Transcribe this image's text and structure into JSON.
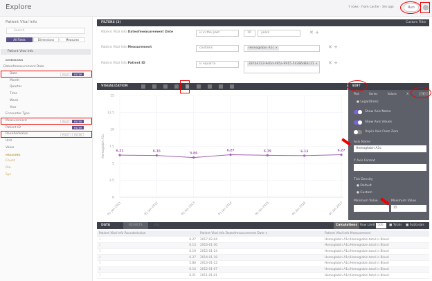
{
  "header": {
    "title": "Explore",
    "status": "7 rows · from cache · 3m ago",
    "run_label": "Run"
  },
  "sidebar": {
    "model": "Patient Vital Info",
    "search_placeholder": "Search",
    "tabs": [
      "All Fields",
      "Dimensions",
      "Measures"
    ],
    "view": "Patient Vital Info",
    "dimensions_label": "DIMENSIONS",
    "group": "Dateofmeasurement Date",
    "fields": [
      "Date",
      "Month",
      "Quarter",
      "Time",
      "Week",
      "Year",
      "Encounter Type",
      "Measurement",
      "Patient ID",
      "Roundedvalue",
      "Unit",
      "Value"
    ],
    "measures_label": "MEASURES",
    "measures": [
      "Count",
      "Dia",
      "Sys"
    ],
    "pivot": "PIVOT",
    "filter": "FILTER"
  },
  "filters": {
    "title": "FILTERS (3)",
    "custom_filter": "Custom Filter",
    "prefix": "Patient Vital Info",
    "rows": [
      {
        "field": "Dateofmeasurement Date",
        "op": "is in the past",
        "value": "10",
        "unit": "years"
      },
      {
        "field": "Measurement",
        "op": "contains",
        "value": "Hemoglobin A1c ×"
      },
      {
        "field": "Patient ID",
        "op": "is equal to",
        "value": "287b4723-9d0d-495a-9915-54386d8dc31 ×"
      }
    ]
  },
  "visualization": {
    "title": "VISUALIZATION",
    "edit": "EDIT",
    "edit_tabs": [
      "Plot",
      "Series",
      "Values",
      "X",
      "Y"
    ],
    "logarithmic": "Logarithmic",
    "show_axis_name": "Show Axis Name",
    "show_axis_values": "Show Axis Values",
    "unpin": "Unpin Axis From Zero",
    "axis_name_label": "Axis Name",
    "axis_name": "Hemoglobin A1c",
    "format_label": "Y Axis Format",
    "tick_density": "Tick Density",
    "default": "Default",
    "custom": "Custom",
    "min_label": "Minimum Value",
    "max_label": "Maximum Value",
    "max_value": "15"
  },
  "chart_data": {
    "type": "line",
    "ylabel": "Hemoglobin A1c",
    "ylim": [
      0,
      15
    ],
    "yticks": [
      "0",
      "2.5",
      "5",
      "7.5",
      "10",
      "12.5",
      "15"
    ],
    "categories": [
      "01 Jan 2011",
      "01 Jan 2012",
      "01 Jan 2013",
      "01 Jan 2014",
      "01 Jan 2015",
      "01 Jan 2016",
      "01 Jan 2017"
    ],
    "values": [
      6.21,
      6.16,
      5.86,
      6.27,
      6.19,
      6.13,
      6.27
    ],
    "labels": [
      "6.21",
      "6.16",
      "5.86",
      "6.27",
      "6.19",
      "6.13",
      "6.27"
    ],
    "color": "#a05fb0",
    "grid": true
  },
  "data": {
    "title": "DATA",
    "tabs": [
      "RESULTS",
      "SQL"
    ],
    "calculations": "Calculations",
    "row_limit_label": "Row Limit",
    "row_limit": "500",
    "totals": "Totals",
    "subtotals": "Subtotals",
    "columns": [
      "Patient Vital Info Roundedvalue",
      "Patient Vital Info Dateofmeasurement Date ∨",
      "Patient Vital Info Measurement"
    ],
    "rows": [
      [
        "1",
        "6.27",
        "2017-02-04",
        "Hemoglobin A1c/Hemoglobin.total in Blood"
      ],
      [
        "2",
        "6.13",
        "2016-01-30",
        "Hemoglobin A1c/Hemoglobin.total in Blood"
      ],
      [
        "3",
        "6.19",
        "2015-01-24",
        "Hemoglobin A1c/Hemoglobin.total in Blood"
      ],
      [
        "4",
        "6.27",
        "2014-01-18",
        "Hemoglobin A1c/Hemoglobin.total in Blood"
      ],
      [
        "5",
        "5.86",
        "2013-01-12",
        "Hemoglobin A1c/Hemoglobin.total in Blood"
      ],
      [
        "6",
        "6.16",
        "2012-01-07",
        "Hemoglobin A1c/Hemoglobin.total in Blood"
      ],
      [
        "7",
        "6.21",
        "2011-01-01",
        "Hemoglobin A1c/Hemoglobin.total in Blood"
      ]
    ]
  }
}
